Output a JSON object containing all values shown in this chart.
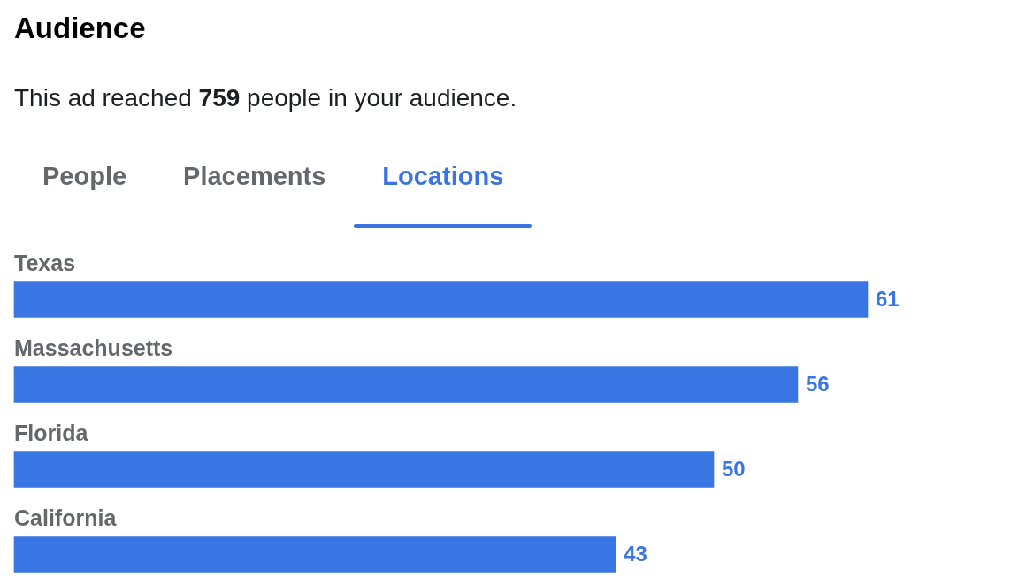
{
  "chart_data": {
    "type": "bar",
    "orientation": "horizontal",
    "title": "Audience",
    "subtitle": "This ad reached 759 people in your audience.",
    "annotations": [
      "People",
      "Placements",
      "Locations"
    ],
    "categories": [
      "Texas",
      "Massachusetts",
      "Florida",
      "California"
    ],
    "values": [
      61,
      56,
      50,
      43
    ],
    "color": "#3a75e4",
    "data_labels": true
  }
}
